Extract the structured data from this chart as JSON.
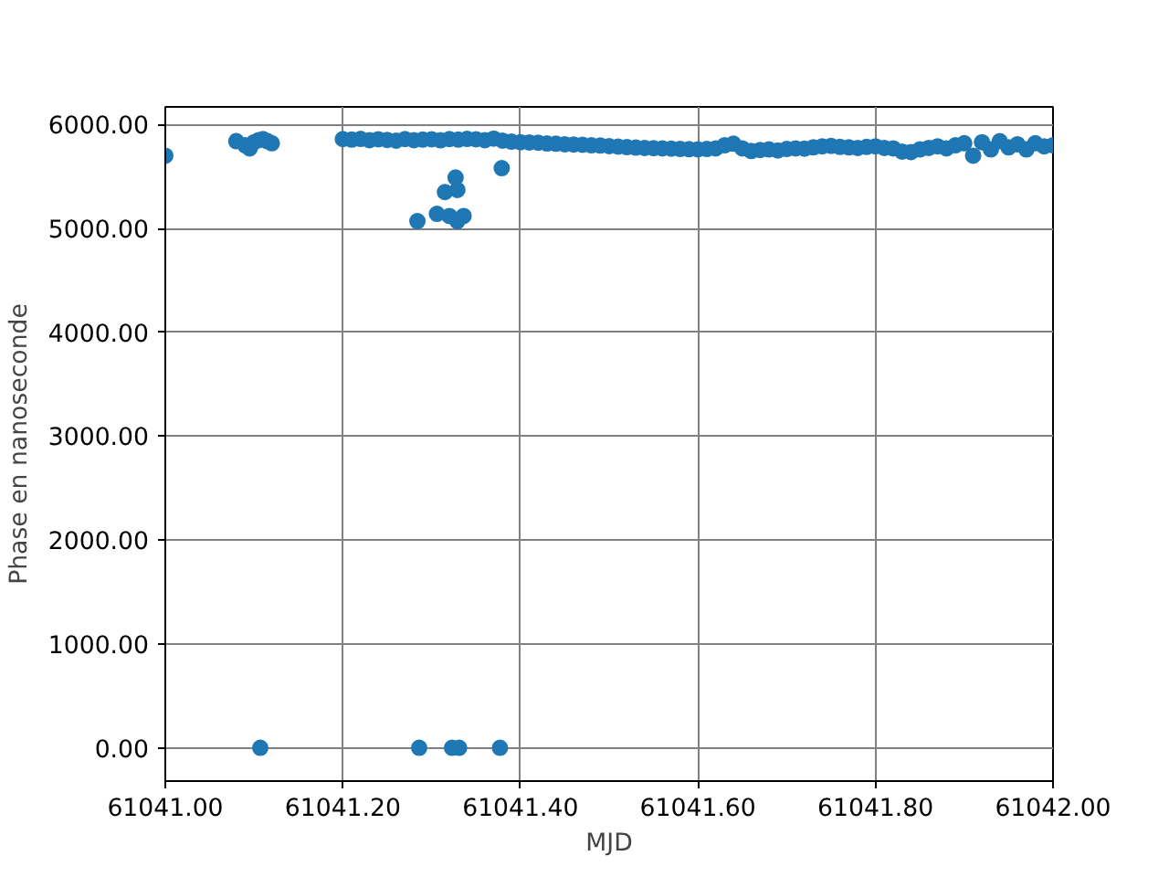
{
  "chart_data": {
    "type": "scatter",
    "xlabel": "MJD",
    "ylabel": "Phase en nanoseconde",
    "xlim": [
      61041.0,
      61042.0
    ],
    "xticks": [
      {
        "value": 61041.0,
        "label": "61041.00"
      },
      {
        "value": 61041.2,
        "label": "61041.20"
      },
      {
        "value": 61041.4,
        "label": "61041.40"
      },
      {
        "value": 61041.6,
        "label": "61041.60"
      },
      {
        "value": 61041.8,
        "label": "61041.80"
      },
      {
        "value": 61042.0,
        "label": "61042.00"
      }
    ],
    "ylim": [
      -320,
      6170
    ],
    "yticks": [
      {
        "value": 0,
        "label": "0.00"
      },
      {
        "value": 1000,
        "label": "1000.00"
      },
      {
        "value": 2000,
        "label": "2000.00"
      },
      {
        "value": 3000,
        "label": "3000.00"
      },
      {
        "value": 4000,
        "label": "4000.00"
      },
      {
        "value": 5000,
        "label": "5000.00"
      },
      {
        "value": 6000,
        "label": "6000.00"
      }
    ],
    "grid": true,
    "marker": "circle",
    "series": [
      {
        "color": "#1f77b4",
        "x": [
          61041.0,
          61041.08,
          61041.09,
          61041.095,
          61041.1,
          61041.105,
          61041.11,
          61041.115,
          61041.12,
          61041.107,
          61041.286,
          61041.323,
          61041.331,
          61041.377,
          61041.284,
          61041.306,
          61041.315,
          61041.327,
          61041.329,
          61041.329,
          61041.336,
          61041.32,
          61041.379,
          61041.2,
          61041.21,
          61041.22,
          61041.23,
          61041.24,
          61041.25,
          61041.26,
          61041.27,
          61041.28,
          61041.29,
          61041.3,
          61041.31,
          61041.32,
          61041.33,
          61041.34,
          61041.35,
          61041.36,
          61041.37,
          61041.38,
          61041.39,
          61041.4,
          61041.41,
          61041.42,
          61041.43,
          61041.44,
          61041.45,
          61041.46,
          61041.47,
          61041.48,
          61041.49,
          61041.5,
          61041.51,
          61041.52,
          61041.53,
          61041.54,
          61041.55,
          61041.56,
          61041.57,
          61041.58,
          61041.59,
          61041.6,
          61041.61,
          61041.62,
          61041.63,
          61041.64,
          61041.65,
          61041.66,
          61041.67,
          61041.68,
          61041.69,
          61041.7,
          61041.71,
          61041.72,
          61041.73,
          61041.74,
          61041.75,
          61041.76,
          61041.77,
          61041.78,
          61041.79,
          61041.8,
          61041.81,
          61041.82,
          61041.83,
          61041.84,
          61041.85,
          61041.86,
          61041.87,
          61041.88,
          61041.89,
          61041.9,
          61041.91,
          61041.92,
          61041.93,
          61041.94,
          61041.95,
          61041.96,
          61041.97,
          61041.98,
          61041.99,
          61042.0
        ],
        "values": [
          5700,
          5840,
          5800,
          5770,
          5830,
          5850,
          5860,
          5840,
          5820,
          0,
          0,
          0,
          0,
          0,
          5070,
          5140,
          5350,
          5490,
          5370,
          5070,
          5120,
          5120,
          5580,
          5860,
          5855,
          5862,
          5850,
          5858,
          5852,
          5845,
          5860,
          5850,
          5855,
          5858,
          5848,
          5860,
          5855,
          5862,
          5858,
          5850,
          5865,
          5845,
          5835,
          5830,
          5828,
          5825,
          5818,
          5815,
          5810,
          5808,
          5805,
          5800,
          5798,
          5792,
          5788,
          5782,
          5778,
          5775,
          5772,
          5770,
          5768,
          5765,
          5763,
          5762,
          5765,
          5770,
          5800,
          5815,
          5770,
          5745,
          5755,
          5760,
          5750,
          5765,
          5770,
          5768,
          5780,
          5790,
          5795,
          5785,
          5780,
          5775,
          5785,
          5790,
          5775,
          5770,
          5740,
          5735,
          5760,
          5775,
          5790,
          5770,
          5800,
          5820,
          5700,
          5830,
          5760,
          5840,
          5780,
          5810,
          5760,
          5820,
          5790,
          5800
        ]
      }
    ]
  }
}
